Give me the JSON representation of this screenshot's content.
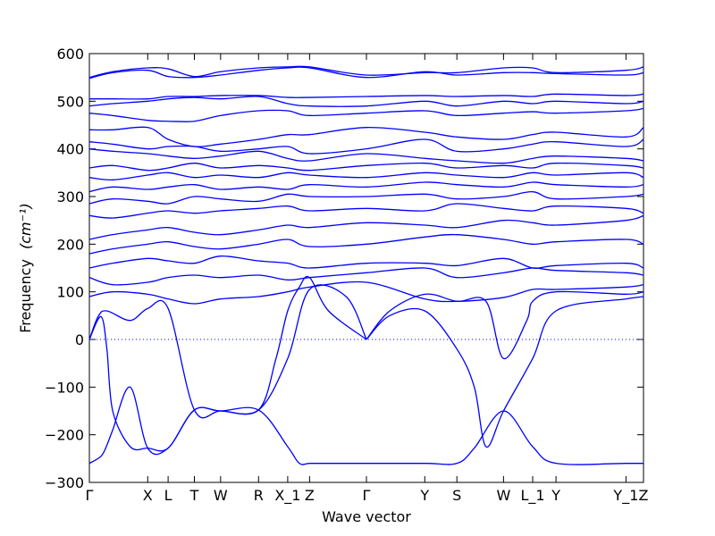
{
  "chart_data": {
    "type": "line",
    "xlabel": "Wave vector",
    "ylabel": "Frequency",
    "ylabel_unit": "(cm⁻¹)",
    "ylim": [
      -300,
      600
    ],
    "y_ticks": [
      -300,
      -200,
      -100,
      0,
      100,
      200,
      300,
      400,
      500,
      600
    ],
    "grid": false,
    "reference_line": {
      "y": 0,
      "style": "dotted"
    },
    "x_ticks": [
      {
        "label": "Γ",
        "x": 0
      },
      {
        "label": "X",
        "x": 1.053
      },
      {
        "label": "L",
        "x": 1.421
      },
      {
        "label": "T",
        "x": 1.895
      },
      {
        "label": "W",
        "x": 2.368
      },
      {
        "label": "R",
        "x": 3.053
      },
      {
        "label": "X_1",
        "x": 3.579
      },
      {
        "label": "Z",
        "x": 3.974
      },
      {
        "label": "Γ",
        "x": 5.0
      },
      {
        "label": "Y",
        "x": 6.053
      },
      {
        "label": "S",
        "x": 6.632
      },
      {
        "label": "W",
        "x": 7.474
      },
      {
        "label": "L_1",
        "x": 8.0
      },
      {
        "label": "Y",
        "x": 8.421
      },
      {
        "label": "Y_1",
        "x": 9.684
      },
      {
        "label": "Z",
        "x": 10.0
      }
    ],
    "xlim": [
      0,
      10
    ],
    "series_color": "#0000ff",
    "series": [
      {
        "x": [
          0,
          0.211,
          0.316,
          0.421,
          0.737,
          1.053,
          1.421,
          1.895,
          2.368,
          3.053,
          3.579,
          3.789,
          3.974,
          4.316,
          5.0
        ],
        "y": [
          -260,
          -245,
          -222,
          -190,
          -100,
          -228,
          -228,
          -148,
          -150,
          -148,
          -225,
          -260,
          -260,
          -260,
          -260
        ]
      },
      {
        "x": [
          5.0,
          6.053,
          6.632,
          6.947,
          7.474,
          8.0,
          8.421,
          9.684,
          10.0
        ],
        "y": [
          -260,
          -260,
          -260,
          -228,
          -150,
          -225,
          -260,
          -260,
          -260
        ]
      },
      {
        "x": [
          0,
          0.211,
          0.316,
          0.421,
          0.737,
          1.053,
          1.421,
          1.895,
          2.368,
          3.053,
          3.368,
          3.579,
          3.789,
          3.974,
          4.316,
          5.0
        ],
        "y": [
          0,
          48,
          -20,
          -150,
          -225,
          -228,
          -228,
          -148,
          -150,
          -148,
          -40,
          60,
          110,
          130,
          60,
          0
        ]
      },
      {
        "x": [
          5.0,
          5.421,
          6.053,
          6.632,
          6.947,
          7.158,
          7.474,
          8.0,
          8.421,
          9.684,
          10.0
        ],
        "y": [
          0,
          50,
          60,
          -20,
          -100,
          -225,
          -150,
          -40,
          60,
          85,
          90
        ]
      },
      {
        "x": [
          0,
          0.158,
          0.316,
          0.737,
          1.053,
          1.421,
          1.895,
          2.368,
          3.053,
          3.579,
          3.974,
          4.632,
          5.0
        ],
        "y": [
          0,
          48,
          60,
          40,
          65,
          65,
          -148,
          -150,
          -148,
          -40,
          105,
          90,
          0
        ]
      },
      {
        "x": [
          5.0,
          5.421,
          6.053,
          6.632,
          7.158,
          7.474,
          7.895,
          8.0,
          8.421,
          9.684,
          10.0
        ],
        "y": [
          0,
          60,
          95,
          80,
          80,
          -40,
          40,
          80,
          100,
          95,
          100
        ]
      },
      {
        "x": [
          0,
          0.421,
          1.053,
          1.421,
          1.895,
          2.368,
          3.053,
          3.579,
          3.974,
          5.0,
          6.053,
          6.632,
          7.474,
          8.0,
          8.421,
          9.684,
          10.0
        ],
        "y": [
          90,
          100,
          95,
          85,
          75,
          85,
          90,
          100,
          110,
          120,
          85,
          80,
          88,
          105,
          105,
          110,
          115
        ]
      },
      {
        "x": [
          0,
          0.421,
          1.053,
          1.421,
          1.895,
          2.368,
          3.053,
          3.579,
          3.974,
          5.0,
          6.053,
          6.632,
          7.474,
          8.0,
          8.421,
          9.684,
          10.0
        ],
        "y": [
          130,
          115,
          120,
          130,
          135,
          130,
          135,
          125,
          130,
          140,
          150,
          130,
          140,
          150,
          145,
          140,
          135
        ]
      },
      {
        "x": [
          0,
          0.421,
          1.053,
          1.421,
          1.895,
          2.368,
          3.053,
          3.579,
          3.974,
          5.0,
          6.053,
          6.632,
          7.474,
          8.0,
          8.421,
          9.684,
          10.0
        ],
        "y": [
          150,
          160,
          170,
          165,
          160,
          175,
          165,
          160,
          150,
          160,
          160,
          155,
          170,
          150,
          155,
          160,
          150
        ]
      },
      {
        "x": [
          0,
          0.421,
          1.053,
          1.421,
          1.895,
          2.368,
          3.053,
          3.579,
          3.974,
          5.0,
          6.053,
          6.632,
          7.474,
          8.0,
          8.421,
          9.684,
          10.0
        ],
        "y": [
          180,
          190,
          200,
          205,
          195,
          190,
          200,
          210,
          195,
          200,
          215,
          220,
          210,
          200,
          205,
          210,
          200
        ]
      },
      {
        "x": [
          0,
          0.421,
          1.053,
          1.421,
          1.895,
          2.368,
          3.053,
          3.579,
          3.974,
          5.0,
          6.053,
          6.632,
          7.474,
          8.0,
          8.421,
          9.684,
          10.0
        ],
        "y": [
          210,
          220,
          230,
          235,
          225,
          220,
          230,
          240,
          235,
          245,
          240,
          235,
          250,
          245,
          240,
          250,
          260
        ]
      },
      {
        "x": [
          0,
          0.421,
          1.053,
          1.421,
          1.895,
          2.368,
          3.053,
          3.579,
          3.974,
          5.0,
          6.053,
          6.632,
          7.474,
          8.0,
          8.421,
          9.684,
          10.0
        ],
        "y": [
          260,
          255,
          265,
          270,
          265,
          270,
          275,
          280,
          270,
          275,
          270,
          285,
          275,
          270,
          280,
          275,
          265
        ]
      },
      {
        "x": [
          0,
          0.421,
          1.053,
          1.421,
          1.895,
          2.368,
          3.053,
          3.579,
          3.974,
          5.0,
          6.053,
          6.632,
          7.474,
          8.0,
          8.421,
          9.684,
          10.0
        ],
        "y": [
          285,
          295,
          290,
          285,
          300,
          295,
          290,
          305,
          300,
          300,
          305,
          295,
          300,
          310,
          295,
          300,
          305
        ]
      },
      {
        "x": [
          0,
          0.421,
          1.053,
          1.421,
          1.895,
          2.368,
          3.053,
          3.579,
          3.974,
          5.0,
          6.053,
          6.632,
          7.474,
          8.0,
          8.421,
          9.684,
          10.0
        ],
        "y": [
          310,
          320,
          315,
          320,
          325,
          315,
          320,
          315,
          325,
          320,
          330,
          325,
          320,
          330,
          325,
          320,
          325
        ]
      },
      {
        "x": [
          0,
          0.421,
          1.053,
          1.421,
          1.895,
          2.368,
          3.053,
          3.579,
          3.974,
          5.0,
          6.053,
          6.632,
          7.474,
          8.0,
          8.421,
          9.684,
          10.0
        ],
        "y": [
          340,
          335,
          345,
          350,
          340,
          345,
          340,
          350,
          345,
          340,
          350,
          345,
          340,
          350,
          345,
          350,
          340
        ]
      },
      {
        "x": [
          0,
          0.421,
          1.053,
          1.421,
          1.895,
          2.368,
          3.053,
          3.579,
          3.974,
          5.0,
          6.053,
          6.632,
          7.474,
          8.0,
          8.421,
          9.684,
          10.0
        ],
        "y": [
          360,
          365,
          355,
          360,
          370,
          360,
          365,
          360,
          355,
          365,
          370,
          360,
          365,
          360,
          370,
          365,
          360
        ]
      },
      {
        "x": [
          0,
          0.421,
          1.053,
          1.421,
          1.895,
          2.368,
          3.053,
          3.579,
          3.974,
          5.0,
          6.053,
          6.632,
          7.474,
          8.0,
          8.421,
          9.684,
          10.0
        ],
        "y": [
          400,
          395,
          390,
          385,
          380,
          385,
          395,
          380,
          375,
          390,
          380,
          375,
          370,
          380,
          385,
          380,
          375
        ]
      },
      {
        "x": [
          0,
          0.421,
          1.053,
          1.421,
          1.895,
          2.368,
          3.053,
          3.579,
          3.974,
          5.0,
          6.053,
          6.632,
          7.474,
          8.0,
          8.421,
          9.684,
          10.0
        ],
        "y": [
          415,
          410,
          400,
          405,
          405,
          395,
          400,
          405,
          390,
          400,
          420,
          395,
          400,
          410,
          415,
          405,
          420
        ]
      },
      {
        "x": [
          0,
          0.421,
          1.053,
          1.421,
          1.895,
          2.368,
          3.053,
          3.579,
          3.974,
          5.0,
          6.053,
          6.632,
          7.474,
          8.0,
          8.421,
          9.684,
          10.0
        ],
        "y": [
          440,
          440,
          445,
          420,
          405,
          410,
          420,
          430,
          430,
          445,
          435,
          425,
          420,
          430,
          435,
          425,
          445
        ]
      },
      {
        "x": [
          0,
          0.421,
          1.053,
          1.421,
          1.895,
          2.368,
          3.053,
          3.579,
          3.974,
          5.0,
          6.053,
          6.632,
          7.474,
          8.0,
          8.421,
          9.684,
          10.0
        ],
        "y": [
          475,
          470,
          460,
          458,
          458,
          470,
          480,
          480,
          470,
          475,
          480,
          470,
          475,
          478,
          475,
          480,
          485
        ]
      },
      {
        "x": [
          0,
          0.421,
          1.053,
          1.421,
          1.895,
          2.368,
          3.053,
          3.579,
          3.974,
          5.0,
          6.053,
          6.632,
          7.474,
          8.0,
          8.421,
          9.684,
          10.0
        ],
        "y": [
          490,
          495,
          500,
          505,
          508,
          505,
          510,
          495,
          490,
          490,
          500,
          490,
          500,
          495,
          500,
          495,
          500
        ]
      },
      {
        "x": [
          0,
          0.421,
          1.053,
          1.421,
          1.895,
          2.368,
          3.053,
          3.579,
          3.974,
          5.0,
          6.053,
          6.632,
          7.474,
          8.0,
          8.421,
          9.684,
          10.0
        ],
        "y": [
          505,
          505,
          505,
          510,
          510,
          512,
          512,
          508,
          508,
          510,
          512,
          510,
          512,
          510,
          515,
          512,
          515
        ]
      },
      {
        "x": [
          0,
          0.421,
          1.053,
          1.421,
          1.895,
          2.368,
          3.053,
          3.579,
          3.974,
          5.0,
          6.053,
          6.632,
          7.474,
          8.0,
          8.421,
          9.684,
          10.0
        ],
        "y": [
          548,
          560,
          565,
          552,
          550,
          555,
          565,
          570,
          570,
          550,
          562,
          555,
          560,
          560,
          558,
          555,
          560
        ]
      },
      {
        "x": [
          0,
          0.421,
          1.053,
          1.421,
          1.895,
          2.368,
          3.053,
          3.579,
          3.974,
          5.0,
          6.053,
          6.632,
          7.474,
          8.0,
          8.421,
          9.684,
          10.0
        ],
        "y": [
          550,
          562,
          570,
          568,
          552,
          562,
          570,
          572,
          572,
          555,
          560,
          560,
          570,
          570,
          560,
          565,
          572
        ]
      }
    ]
  }
}
